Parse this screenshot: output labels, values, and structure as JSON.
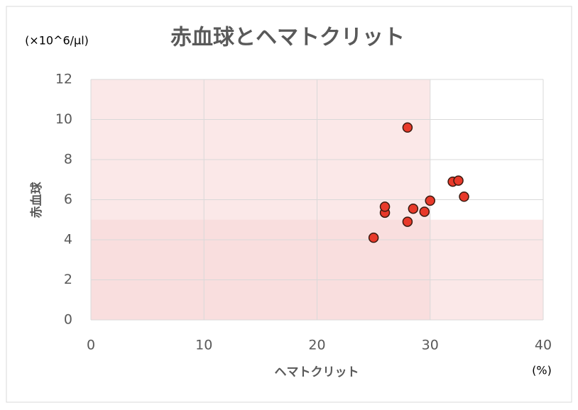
{
  "chart_data": {
    "type": "scatter",
    "title": "赤血球とヘマトクリット",
    "y_unit": "(×10^6/μl)",
    "y_label": "赤血球",
    "x_label": "ヘマトクリット",
    "x_unit": "(%)",
    "x": [
      25,
      26,
      26,
      28,
      28,
      28.5,
      29.5,
      30,
      32,
      32.5,
      33
    ],
    "y": [
      4.1,
      5.35,
      5.65,
      4.9,
      9.6,
      5.55,
      5.4,
      5.95,
      6.9,
      6.95,
      6.15
    ],
    "color": "#e8392a",
    "xlim": [
      0,
      40
    ],
    "ylim": [
      0,
      12
    ],
    "xticks": [
      0,
      10,
      20,
      30,
      40
    ],
    "yticks": [
      0,
      2,
      4,
      6,
      8,
      10,
      12
    ],
    "grid": true,
    "shade_x_max": 30,
    "shade_y_max": 5,
    "shade_color": "#f8d6d6"
  }
}
